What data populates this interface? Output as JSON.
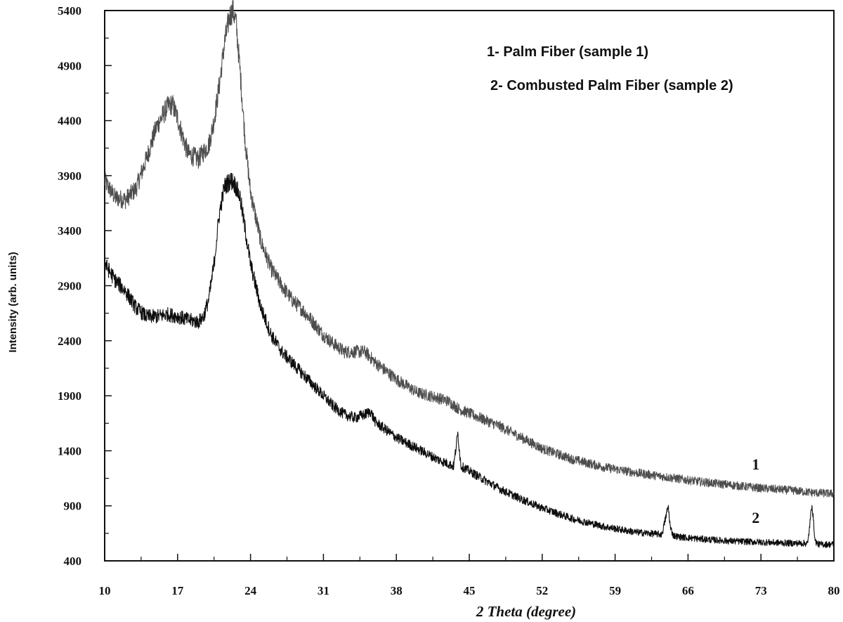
{
  "chart_data": {
    "type": "line",
    "title": "",
    "xlabel": "2 Theta (degree)",
    "ylabel": "Intensity (arb. units)",
    "xlim": [
      10,
      80
    ],
    "ylim": [
      400,
      5400
    ],
    "x_ticks": [
      "10",
      "17",
      "24",
      "31",
      "38",
      "45",
      "52",
      "59",
      "66",
      "73",
      "80"
    ],
    "y_ticks": [
      "400",
      "900",
      "1400",
      "1900",
      "2400",
      "2900",
      "3400",
      "3900",
      "4400",
      "4900",
      "5400"
    ],
    "legend": {
      "placement": "top-right",
      "entries": [
        "1- Palm Fiber (sample 1)",
        "2- Combusted Palm Fiber (sample 2)"
      ]
    },
    "curve_labels": [
      {
        "text": "1",
        "x": 72.5,
        "y": 1230
      },
      {
        "text": "2",
        "x": 72.5,
        "y": 745
      }
    ],
    "grid": false,
    "series": [
      {
        "name": "1",
        "color": "#4d4d4d",
        "x": [
          10,
          11,
          12,
          13,
          14,
          15,
          16,
          16.5,
          17,
          17.5,
          18,
          19,
          20,
          20.5,
          21,
          21.5,
          22,
          22.3,
          22.6,
          23,
          23.5,
          24,
          25,
          26,
          27,
          28,
          29,
          30,
          31,
          32,
          33,
          34,
          35,
          36,
          38,
          40,
          42,
          43,
          44,
          46,
          48,
          50,
          52,
          55,
          58,
          61,
          64,
          67,
          70,
          73,
          76,
          78,
          80
        ],
        "y": [
          3850,
          3700,
          3680,
          3780,
          4050,
          4350,
          4520,
          4550,
          4420,
          4250,
          4100,
          4050,
          4180,
          4400,
          4720,
          5100,
          5350,
          5400,
          5300,
          4850,
          4200,
          3750,
          3300,
          3050,
          2900,
          2770,
          2680,
          2570,
          2450,
          2370,
          2300,
          2300,
          2300,
          2200,
          2050,
          1930,
          1880,
          1850,
          1780,
          1700,
          1620,
          1520,
          1420,
          1320,
          1250,
          1200,
          1160,
          1120,
          1090,
          1060,
          1040,
          1020,
          1010
        ]
      },
      {
        "name": "2",
        "color": "#0d0d0d",
        "x": [
          10,
          11,
          12,
          13,
          14,
          15,
          16,
          17,
          18,
          19,
          19.5,
          20,
          20.5,
          21,
          21.5,
          22,
          22.3,
          22.6,
          23,
          23.5,
          24,
          25,
          26,
          27,
          28,
          29,
          30,
          31,
          32,
          33,
          34,
          35,
          35.5,
          36,
          38,
          40,
          42,
          43.5,
          43.9,
          44.2,
          44.6,
          46,
          48,
          50,
          52,
          55,
          58,
          61,
          63.5,
          64.1,
          64.3,
          64.6,
          65,
          67,
          70,
          73,
          76,
          77.5,
          77.9,
          78.2,
          78.5,
          80
        ],
        "y": [
          3100,
          2950,
          2850,
          2700,
          2620,
          2620,
          2640,
          2620,
          2590,
          2570,
          2620,
          2780,
          3100,
          3550,
          3800,
          3850,
          3850,
          3800,
          3700,
          3400,
          3100,
          2700,
          2450,
          2300,
          2200,
          2100,
          2000,
          1900,
          1800,
          1730,
          1700,
          1730,
          1760,
          1660,
          1520,
          1420,
          1320,
          1260,
          1560,
          1260,
          1240,
          1160,
          1050,
          960,
          880,
          780,
          710,
          660,
          640,
          900,
          700,
          630,
          620,
          600,
          580,
          570,
          560,
          560,
          920,
          580,
          550,
          550
        ]
      }
    ]
  }
}
